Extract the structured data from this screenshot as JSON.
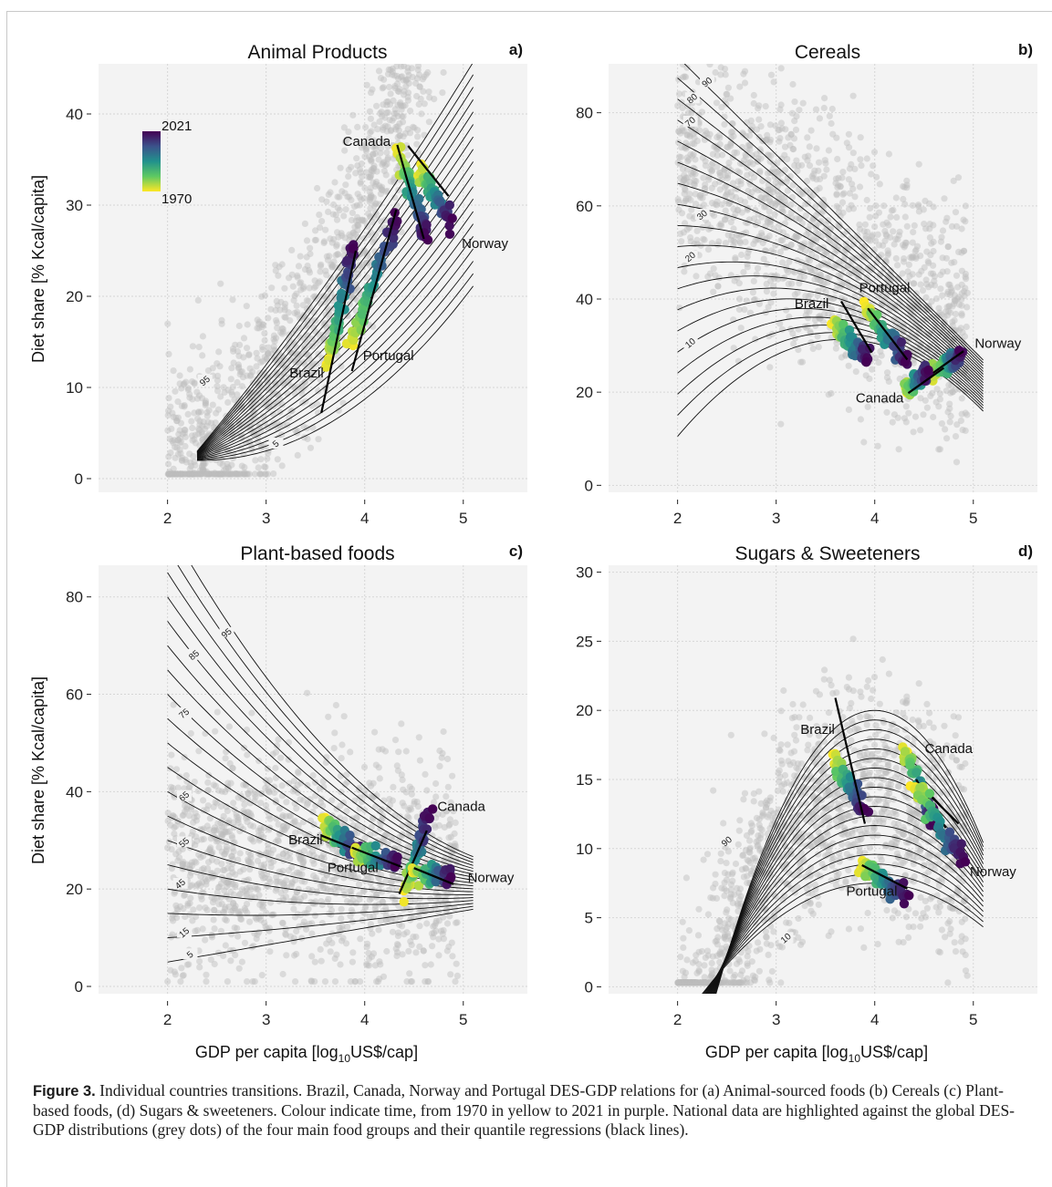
{
  "figure": {
    "label": "Figure 3.",
    "caption": "Individual countries transitions. Brazil, Canada, Norway and Portugal DES-GDP relations for (a) Animal-sourced foods (b) Cereals (c) Plant-based foods, (d) Sugars & sweeteners. Colour indicate time, from 1970 in yellow to 2021 in purple. National data are highlighted against the global DES-GDP distributions (grey dots) of the four main food groups and their quantile regressions (black lines).",
    "ylabel": "Diet share [% Kcal/capita]",
    "xlabel_main": "GDP per capita [log",
    "xlabel_sub": "10",
    "xlabel_tail": "US$/cap]",
    "colorbar": {
      "top_label": "2021",
      "bottom_label": "1970",
      "colors": [
        "#fde725",
        "#5ec962",
        "#21918c",
        "#3b528b",
        "#440154"
      ]
    }
  },
  "chart_data": [
    {
      "panel": "a)",
      "title": "Animal Products",
      "type": "scatter",
      "xlim": [
        1.3,
        5.65
      ],
      "ylim": [
        -1.5,
        45.5
      ],
      "xticks": [
        2,
        3,
        4,
        5
      ],
      "yticks": [
        0,
        10,
        20,
        30,
        40
      ],
      "quantile_labels": [
        {
          "text": "95",
          "x": 2.38,
          "y": 10.7
        },
        {
          "text": "5",
          "x": 3.1,
          "y": 3.8
        }
      ],
      "countries": [
        {
          "name": "Canada",
          "label_pos": [
            4.02,
            36.5
          ],
          "start": [
            4.35,
            35.8
          ],
          "end": [
            4.62,
            26.5
          ],
          "trend": [
            [
              4.33,
              36.6
            ],
            [
              4.6,
              26.3
            ]
          ]
        },
        {
          "name": "Norway",
          "label_pos": [
            5.22,
            25.3
          ],
          "start": [
            4.55,
            34.0
          ],
          "end": [
            4.87,
            28.0
          ],
          "trend": [
            [
              4.44,
              36.5
            ],
            [
              4.85,
              31.0
            ]
          ]
        },
        {
          "name": "Brazil",
          "label_pos": [
            3.41,
            11.1
          ],
          "start": [
            3.62,
            12.5
          ],
          "end": [
            3.9,
            25.5
          ],
          "trend": [
            [
              3.56,
              7.2
            ],
            [
              3.91,
              25.0
            ]
          ]
        },
        {
          "name": "Portugal",
          "label_pos": [
            4.24,
            13.0
          ],
          "start": [
            3.85,
            14.2
          ],
          "end": [
            4.32,
            28.8
          ],
          "trend": [
            [
              3.87,
              11.8
            ],
            [
              4.32,
              29.5
            ]
          ]
        }
      ]
    },
    {
      "panel": "b)",
      "title": "Cereals",
      "type": "scatter",
      "xlim": [
        1.3,
        5.65
      ],
      "ylim": [
        -1.5,
        90.5
      ],
      "xticks": [
        2,
        3,
        4,
        5
      ],
      "yticks": [
        0,
        20,
        40,
        60,
        80
      ],
      "quantile_labels": [
        {
          "text": "90",
          "x": 2.3,
          "y": 86.5
        },
        {
          "text": "80",
          "x": 2.15,
          "y": 83.0
        },
        {
          "text": "70",
          "x": 2.13,
          "y": 78.0
        },
        {
          "text": "30",
          "x": 2.25,
          "y": 58.0
        },
        {
          "text": "20",
          "x": 2.13,
          "y": 49.0
        },
        {
          "text": "10",
          "x": 2.13,
          "y": 30.5
        }
      ],
      "countries": [
        {
          "name": "Brazil",
          "label_pos": [
            3.36,
            38.0
          ],
          "start": [
            3.58,
            34.5
          ],
          "end": [
            3.95,
            27.0
          ],
          "trend": [
            [
              3.66,
              39.5
            ],
            [
              3.97,
              28.5
            ]
          ]
        },
        {
          "name": "Portugal",
          "label_pos": [
            4.1,
            41.5
          ],
          "start": [
            3.9,
            38.0
          ],
          "end": [
            4.32,
            27.0
          ],
          "trend": [
            [
              3.93,
              38.0
            ],
            [
              4.33,
              27.0
            ]
          ]
        },
        {
          "name": "Norway",
          "label_pos": [
            5.25,
            29.5
          ],
          "start": [
            4.6,
            24.5
          ],
          "end": [
            4.88,
            28.5
          ],
          "trend": [
            [
              4.55,
              23.5
            ],
            [
              4.9,
              28.8
            ]
          ]
        },
        {
          "name": "Canada",
          "label_pos": [
            4.05,
            17.8
          ],
          "start": [
            4.3,
            20.5
          ],
          "end": [
            4.55,
            24.0
          ],
          "trend": [
            [
              4.34,
              19.8
            ],
            [
              4.7,
              25.2
            ]
          ]
        }
      ]
    },
    {
      "panel": "c)",
      "title": "Plant-based foods",
      "type": "scatter",
      "xlim": [
        1.3,
        5.65
      ],
      "ylim": [
        -1.5,
        86.5
      ],
      "xticks": [
        2,
        3,
        4,
        5
      ],
      "yticks": [
        0,
        20,
        40,
        60,
        80
      ],
      "quantile_labels": [
        {
          "text": "95",
          "x": 2.6,
          "y": 72.5
        },
        {
          "text": "85",
          "x": 2.27,
          "y": 68.0
        },
        {
          "text": "75",
          "x": 2.17,
          "y": 56.0
        },
        {
          "text": "65",
          "x": 2.17,
          "y": 39.0
        },
        {
          "text": "55",
          "x": 2.17,
          "y": 29.5
        },
        {
          "text": "45",
          "x": 2.13,
          "y": 21.0
        },
        {
          "text": "15",
          "x": 2.17,
          "y": 11.0
        },
        {
          "text": "5",
          "x": 2.23,
          "y": 6.5
        }
      ],
      "countries": [
        {
          "name": "Canada",
          "label_pos": [
            4.98,
            36.0
          ],
          "start": [
            4.42,
            19.5
          ],
          "end": [
            4.64,
            35.0
          ],
          "trend": [
            [
              4.35,
              19.0
            ],
            [
              4.63,
              32.0
            ]
          ]
        },
        {
          "name": "Brazil",
          "label_pos": [
            3.4,
            29.2
          ],
          "start": [
            3.58,
            33.5
          ],
          "end": [
            3.95,
            27.5
          ],
          "trend": [
            [
              3.56,
              31.0
            ],
            [
              4.35,
              24.5
            ]
          ]
        },
        {
          "name": "Portugal",
          "label_pos": [
            3.88,
            23.5
          ],
          "start": [
            3.9,
            27.5
          ],
          "end": [
            4.33,
            25.5
          ],
          "trend": [
            [
              3.87,
              28.5
            ],
            [
              4.38,
              24.5
            ]
          ]
        },
        {
          "name": "Norway",
          "label_pos": [
            5.28,
            21.4
          ],
          "start": [
            4.5,
            24.0
          ],
          "end": [
            4.88,
            22.0
          ],
          "trend": [
            [
              4.5,
              24.3
            ],
            [
              4.9,
              21.0
            ]
          ]
        }
      ]
    },
    {
      "panel": "d)",
      "title": "Sugars & Sweeteners",
      "type": "scatter",
      "xlim": [
        1.3,
        5.65
      ],
      "ylim": [
        -0.5,
        30.5
      ],
      "xticks": [
        2,
        3,
        4,
        5
      ],
      "yticks": [
        0,
        5,
        10,
        15,
        20,
        25,
        30
      ],
      "quantile_labels": [
        {
          "text": "90",
          "x": 2.5,
          "y": 10.5
        },
        {
          "text": "10",
          "x": 3.1,
          "y": 3.5
        }
      ],
      "countries": [
        {
          "name": "Brazil",
          "label_pos": [
            3.42,
            18.3
          ],
          "start": [
            3.58,
            16.5
          ],
          "end": [
            3.9,
            12.8
          ],
          "trend": [
            [
              3.6,
              20.9
            ],
            [
              3.9,
              11.8
            ]
          ]
        },
        {
          "name": "Canada",
          "label_pos": [
            4.75,
            16.9
          ],
          "start": [
            4.3,
            17.3
          ],
          "end": [
            4.6,
            12.0
          ],
          "trend": [
            [
              4.42,
              15.0
            ],
            [
              4.72,
              11.5
            ]
          ]
        },
        {
          "name": "Norway",
          "label_pos": [
            5.2,
            8.0
          ],
          "start": [
            4.4,
            14.5
          ],
          "end": [
            4.9,
            9.0
          ],
          "trend": [
            [
              4.58,
              13.7
            ],
            [
              4.85,
              11.8
            ]
          ]
        },
        {
          "name": "Portugal",
          "label_pos": [
            3.97,
            6.6
          ],
          "start": [
            3.85,
            8.8
          ],
          "end": [
            4.32,
            6.5
          ],
          "trend": [
            [
              3.87,
              8.8
            ],
            [
              4.33,
              7.1
            ]
          ]
        }
      ]
    }
  ]
}
